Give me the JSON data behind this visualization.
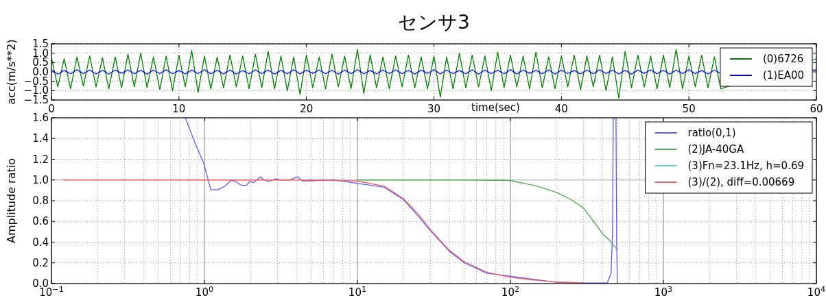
{
  "chart_data": [
    {
      "type": "line",
      "title": "センサ3",
      "xlabel": "time(sec)",
      "ylabel": "acc(m/s**2)",
      "xlim": [
        0,
        60
      ],
      "ylim": [
        -1.5,
        1.5
      ],
      "xticks": [
        0,
        10,
        20,
        30,
        40,
        50,
        60
      ],
      "yticks": [
        {
          "value": -1.5,
          "label": "−1.5"
        },
        {
          "value": -1.0,
          "label": "−1.0"
        },
        {
          "value": -0.5,
          "label": "−0.5"
        },
        {
          "value": 0,
          "label": "0.0"
        },
        {
          "value": 0.5,
          "label": "0.5"
        },
        {
          "value": 1.0,
          "label": "1.0"
        },
        {
          "value": 1.5,
          "label": "1.5"
        }
      ],
      "grid": true,
      "legend": "top right",
      "x": [
        0,
        0.5,
        1,
        1.5,
        2,
        2.5,
        3,
        3.5,
        4,
        4.5,
        5,
        5.5,
        6,
        6.5,
        7,
        7.5,
        8,
        8.5,
        9,
        9.5,
        10,
        10.5,
        11,
        11.5,
        12,
        12.5,
        13,
        13.5,
        14,
        14.5,
        15,
        15.5,
        16,
        16.5,
        17,
        17.5,
        18,
        18.5,
        19,
        19.5,
        20,
        20.5,
        21,
        21.5,
        22,
        22.5,
        23,
        23.5,
        24,
        24.5,
        25,
        25.5,
        26,
        26.5,
        27,
        27.5,
        28,
        28.5,
        29,
        29.5,
        30,
        30.5,
        31,
        31.5,
        32,
        32.5,
        33,
        33.5,
        34,
        34.5,
        35,
        35.5,
        36,
        36.5,
        37,
        37.5,
        38,
        38.5,
        39,
        39.5,
        40,
        40.5,
        41,
        41.5,
        42,
        42.5,
        43,
        43.5,
        44,
        44.5,
        45,
        45.5,
        46,
        46.5,
        47,
        47.5,
        48,
        48.5,
        49,
        49.5,
        50,
        50.5,
        51,
        51.5,
        52,
        52.5,
        60
      ],
      "series": [
        {
          "name": "(0)6726",
          "color": "#008000",
          "values": [
            0.75,
            -0.8,
            0.7,
            -0.9,
            0.8,
            -0.75,
            0.85,
            -0.8,
            0.75,
            -0.9,
            0.8,
            -0.85,
            0.95,
            -0.8,
            1.0,
            -0.85,
            0.8,
            -0.95,
            0.85,
            -1.0,
            0.9,
            -0.8,
            1.15,
            -1.1,
            0.85,
            -0.9,
            0.8,
            -0.85,
            0.9,
            -0.8,
            0.85,
            -0.9,
            0.95,
            -0.85,
            1.1,
            -0.9,
            0.85,
            -1.0,
            0.8,
            -1.2,
            0.9,
            -0.85,
            0.8,
            -0.9,
            0.95,
            -0.8,
            0.85,
            -0.9,
            1.2,
            -1.15,
            0.9,
            -0.85,
            0.8,
            -0.9,
            0.85,
            -0.8,
            0.9,
            -0.85,
            0.8,
            -0.9,
            0.85,
            -1.35,
            0.8,
            -0.9,
            1.0,
            -0.85,
            0.9,
            -0.8,
            0.85,
            -1.0,
            1.05,
            -0.85,
            0.9,
            -0.8,
            0.85,
            -0.9,
            1.05,
            -0.85,
            0.8,
            -0.9,
            0.85,
            -0.8,
            0.9,
            -0.95,
            0.85,
            -0.8,
            0.9,
            -1.0,
            0.8,
            -1.4,
            1.1,
            -0.85,
            0.9,
            -0.8,
            0.85,
            -0.9,
            0.9,
            -0.85,
            1.2,
            -0.9,
            0.85,
            -0.8,
            0.9,
            -0.85,
            0.8,
            -0.9,
            0.7
          ]
        },
        {
          "name": "(1)EA00",
          "color": "#0000ff",
          "values": [
            0.1,
            -0.12,
            0.08,
            -0.1,
            0.12,
            -0.09,
            0.1,
            -0.11,
            0.09,
            -0.12,
            0.1,
            -0.08,
            0.11,
            -0.1,
            0.09,
            -0.12,
            0.1,
            -0.09,
            0.12,
            -0.1,
            0.08,
            -0.11,
            0.1,
            -0.09,
            0.12,
            -0.1,
            0.09,
            -0.11,
            0.1,
            -0.12,
            0.08,
            -0.1,
            0.11,
            -0.09,
            0.1,
            -0.12,
            0.09,
            -0.1,
            0.12,
            -0.11,
            0.1,
            -0.08,
            0.11,
            -0.1,
            0.09,
            -0.12,
            0.1,
            -0.09,
            0.12,
            -0.1,
            0.08,
            -0.11,
            0.1,
            -0.09,
            0.11,
            -0.1,
            0.09,
            -0.12,
            0.1,
            -0.08,
            0.12,
            -0.11,
            0.1,
            -0.09,
            0.08,
            -0.1,
            0.11,
            -0.12,
            0.1,
            -0.09,
            0.09,
            -0.1,
            0.12,
            -0.11,
            0.1,
            -0.08,
            0.09,
            -0.1,
            0.11,
            -0.12,
            0.1,
            -0.09,
            0.08,
            -0.11,
            0.1,
            -0.1,
            0.12,
            -0.09,
            0.1,
            -0.11,
            0.09,
            -0.12,
            0.1,
            -0.08,
            0.11,
            -0.1,
            0.09,
            -0.12,
            0.1,
            -0.09,
            0.12,
            -0.1,
            0.08,
            -0.11,
            0.1,
            -0.09,
            0.1
          ]
        }
      ]
    },
    {
      "type": "line",
      "ylabel": "Amplitude ratio",
      "log": "x",
      "xlim": [
        0.1,
        10000
      ],
      "ylim": [
        0,
        1.6
      ],
      "xticks": [
        {
          "value": 0.1,
          "label": "10$^{−1}$"
        },
        {
          "value": 1,
          "label": "10$^{0}$"
        },
        {
          "value": 10,
          "label": "10$^{1}$"
        },
        {
          "value": 100,
          "label": "10$^{2}$"
        },
        {
          "value": 1000,
          "label": "10$^{3}$"
        },
        {
          "value": 10000,
          "label": "10$^{4}$"
        }
      ],
      "yticks": [
        {
          "value": 0,
          "label": "0.0"
        },
        {
          "value": 0.2,
          "label": "0.2"
        },
        {
          "value": 0.4,
          "label": "0.4"
        },
        {
          "value": 0.6,
          "label": "0.6"
        },
        {
          "value": 0.8,
          "label": "0.8"
        },
        {
          "value": 1.0,
          "label": "1.0"
        },
        {
          "value": 1.2,
          "label": "1.2"
        },
        {
          "value": 1.4,
          "label": "1.4"
        },
        {
          "value": 1.6,
          "label": "1.6"
        }
      ],
      "grid": true,
      "legend": "top right",
      "ref_lines": [
        {
          "axis": "y",
          "value": 1.0,
          "color": "#b0b0b0"
        }
      ],
      "series": [
        {
          "name": "ratio(0,1)",
          "color": "#5a5aff",
          "x": [
            0.75,
            0.856,
            0.99,
            1.1,
            1.22,
            1.36,
            1.49,
            1.59,
            1.73,
            1.87,
            1.98,
            2.1,
            2.32,
            2.45,
            2.65,
            2.89,
            3.19,
            3.6,
            4.07,
            4.4,
            7,
            15,
            20,
            25,
            30,
            40,
            50,
            70,
            200,
            300,
            430,
            455,
            465,
            470,
            490,
            495,
            500
          ],
          "values": [
            1.6,
            1.38,
            1.16,
            0.905,
            0.905,
            0.94,
            0.995,
            0.99,
            0.95,
            0.945,
            0.985,
            0.975,
            1.03,
            1.0,
            0.985,
            1.01,
            1.0,
            1.0,
            1.03,
            0.99,
            1.0,
            0.93,
            0.81,
            0.65,
            0.51,
            0.31,
            0.2,
            0.1,
            0.013,
            0.006,
            0.005,
            0.1,
            0.5,
            1.6,
            1.6,
            0.4,
            0.0
          ]
        },
        {
          "name": "(2)JA-40GA",
          "color": "#52a852",
          "x": [
            10,
            50,
            100,
            150,
            200,
            250,
            300,
            350,
            400,
            450,
            500
          ],
          "values": [
            1.0,
            1.0,
            0.995,
            0.94,
            0.88,
            0.81,
            0.73,
            0.6,
            0.48,
            0.41,
            0.325
          ]
        },
        {
          "name": "(3)Fn=23.1Hz, h=0.69",
          "color": "#5fd3d3"
        },
        {
          "name": "(3)/(2), diff=0.00669",
          "color": "#f06060",
          "x": [
            0.12,
            0.5,
            1,
            2,
            5,
            10,
            15,
            20,
            25,
            30,
            40,
            50,
            70,
            100,
            150,
            200,
            300
          ],
          "values": [
            1.0,
            1.0,
            1.0,
            1.0,
            1.0,
            0.99,
            0.94,
            0.82,
            0.67,
            0.52,
            0.32,
            0.21,
            0.11,
            0.06,
            0.03,
            0.015,
            0.007
          ]
        }
      ]
    }
  ]
}
